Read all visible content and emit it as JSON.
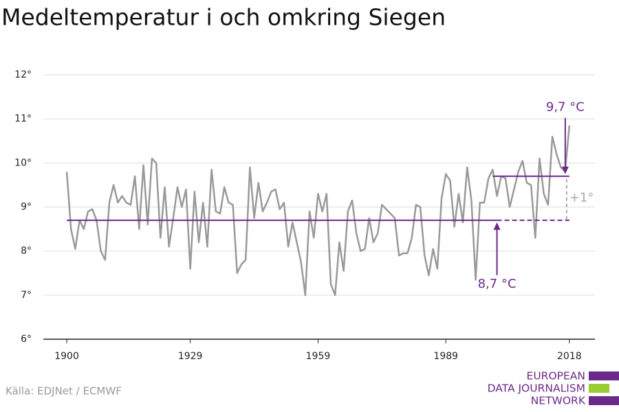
{
  "chart_data": {
    "type": "line",
    "title": "Medeltemperatur i och omkring Siegen",
    "source": "Källa: EDJNet / ECMWF",
    "logo": [
      "EUROPEAN",
      "DATA JOURNALISM",
      "NETWORK"
    ],
    "x": [
      1900,
      1901,
      1902,
      1903,
      1904,
      1905,
      1906,
      1907,
      1908,
      1909,
      1910,
      1911,
      1912,
      1913,
      1914,
      1915,
      1916,
      1917,
      1918,
      1919,
      1920,
      1921,
      1922,
      1923,
      1924,
      1925,
      1926,
      1927,
      1928,
      1929,
      1930,
      1931,
      1932,
      1933,
      1934,
      1935,
      1936,
      1937,
      1938,
      1939,
      1940,
      1941,
      1942,
      1943,
      1944,
      1945,
      1946,
      1947,
      1948,
      1949,
      1950,
      1951,
      1952,
      1953,
      1954,
      1955,
      1956,
      1957,
      1958,
      1959,
      1960,
      1961,
      1962,
      1963,
      1964,
      1965,
      1966,
      1967,
      1968,
      1969,
      1970,
      1971,
      1972,
      1973,
      1974,
      1975,
      1976,
      1977,
      1978,
      1979,
      1980,
      1981,
      1982,
      1983,
      1984,
      1985,
      1986,
      1987,
      1988,
      1989,
      1990,
      1991,
      1992,
      1993,
      1994,
      1995,
      1996,
      1997,
      1998,
      1999,
      2000,
      2001,
      2002,
      2003,
      2004,
      2005,
      2006,
      2007,
      2008,
      2009,
      2010,
      2011,
      2012,
      2013,
      2014,
      2015,
      2016,
      2017,
      2018
    ],
    "series": [
      {
        "color": "#999999",
        "values": [
          9.8,
          8.5,
          8.05,
          8.7,
          8.5,
          8.9,
          8.95,
          8.7,
          8.0,
          7.8,
          9.1,
          9.5,
          9.1,
          9.25,
          9.1,
          9.05,
          9.7,
          8.5,
          9.95,
          8.6,
          10.1,
          10.0,
          8.3,
          9.45,
          8.1,
          8.75,
          9.45,
          9.0,
          9.4,
          7.6,
          9.35,
          8.2,
          9.1,
          8.1,
          9.85,
          8.9,
          8.85,
          9.45,
          9.1,
          9.05,
          7.5,
          7.7,
          7.8,
          9.9,
          8.75,
          9.55,
          8.9,
          9.1,
          9.35,
          9.4,
          8.95,
          9.1,
          8.1,
          8.65,
          8.2,
          7.75,
          7.0,
          8.9,
          8.3,
          9.3,
          8.9,
          9.3,
          7.25,
          7.0,
          8.2,
          7.55,
          8.9,
          9.15,
          8.4,
          8.0,
          8.05,
          8.75,
          8.2,
          8.4,
          9.05,
          8.95,
          8.85,
          8.75,
          7.9,
          7.95,
          7.95,
          8.3,
          9.05,
          9.0,
          7.9,
          7.45,
          8.05,
          7.6,
          9.2,
          9.75,
          9.6,
          8.55,
          9.3,
          8.65,
          9.9,
          9.15,
          7.35,
          9.1,
          9.1,
          9.65,
          9.85,
          9.25,
          9.7,
          9.65,
          9.0,
          9.4,
          9.8,
          10.05,
          9.55,
          9.5,
          8.3,
          10.1,
          9.3,
          9.05,
          10.6,
          10.2,
          9.9,
          9.8,
          10.85
        ]
      }
    ],
    "reference_lines": [
      {
        "value": 8.7,
        "label": "8,7 °C",
        "from": 1900,
        "to": 2018,
        "dashed_from": 2001,
        "color": "#6b2a8a"
      },
      {
        "value": 9.7,
        "label": "9,7 °C",
        "from": 2000,
        "to": 2018,
        "color": "#6b2a8a"
      }
    ],
    "difference_label": "+1°",
    "xlim": [
      1894.5,
      2024
    ],
    "xticks": [
      1900,
      1929,
      1959,
      1989,
      2018
    ],
    "ylim": [
      6,
      12
    ],
    "yticks": [
      {
        "value": 6,
        "label": "6°"
      },
      {
        "value": 7,
        "label": "7°"
      },
      {
        "value": 8,
        "label": "8°"
      },
      {
        "value": 9,
        "label": "9°"
      },
      {
        "value": 10,
        "label": "10°"
      },
      {
        "value": 11,
        "label": "11°"
      },
      {
        "value": 12,
        "label": "12°"
      }
    ],
    "grid": true
  }
}
